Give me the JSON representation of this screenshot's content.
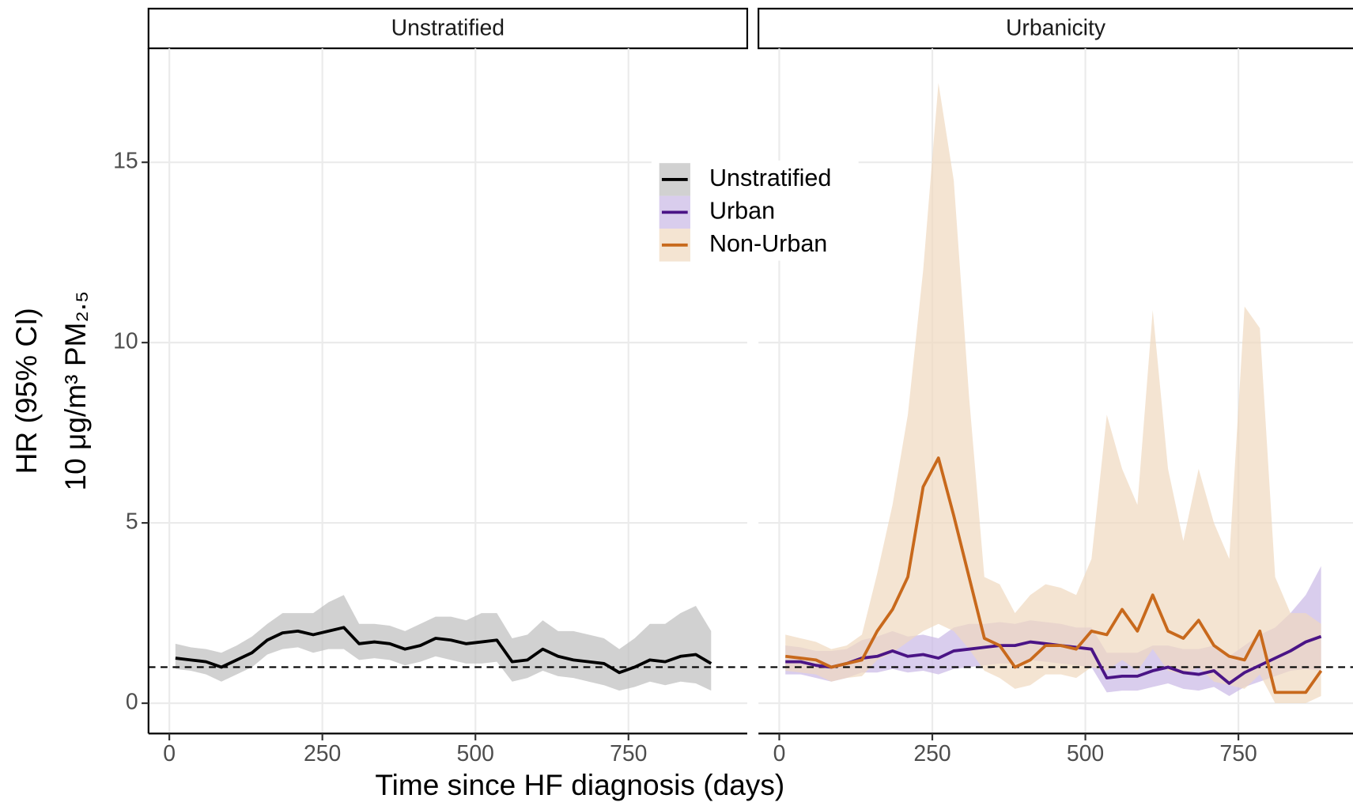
{
  "chart_data": [
    {
      "type": "line",
      "title": "Unstratified",
      "xlabel": "Time since HF diagnosis (days)",
      "ylabel": "HR (95% CI)",
      "ylabel2": "10 μg/m³ PM₂.₅",
      "xlim": [
        -34,
        944
      ],
      "ylim": [
        -0.84,
        18.16
      ],
      "xticks": [
        0,
        250,
        500,
        750
      ],
      "yticks": [
        0,
        5,
        10,
        15
      ],
      "grid": true,
      "hline": 1,
      "show_yticks": true,
      "x": [
        10,
        35,
        60,
        85,
        110,
        135,
        160,
        185,
        210,
        235,
        260,
        285,
        310,
        335,
        360,
        385,
        410,
        435,
        460,
        485,
        510,
        535,
        560,
        585,
        610,
        635,
        660,
        685,
        710,
        735,
        760,
        785,
        810,
        835,
        860,
        885
      ],
      "series": [
        {
          "name": "Unstratified",
          "color": "#000000",
          "band_color": "#bebebe",
          "values": [
            1.25,
            1.2,
            1.15,
            1.0,
            1.2,
            1.4,
            1.75,
            1.95,
            2.0,
            1.9,
            2.0,
            2.1,
            1.65,
            1.7,
            1.65,
            1.5,
            1.6,
            1.8,
            1.75,
            1.65,
            1.7,
            1.75,
            1.15,
            1.2,
            1.5,
            1.3,
            1.2,
            1.15,
            1.1,
            0.85,
            1.0,
            1.2,
            1.15,
            1.3,
            1.35,
            1.1
          ],
          "lower": [
            0.95,
            0.9,
            0.8,
            0.6,
            0.8,
            1.0,
            1.35,
            1.5,
            1.55,
            1.4,
            1.5,
            1.5,
            1.2,
            1.25,
            1.2,
            1.05,
            1.15,
            1.3,
            1.2,
            1.1,
            1.1,
            1.15,
            0.6,
            0.7,
            0.9,
            0.75,
            0.7,
            0.6,
            0.5,
            0.35,
            0.45,
            0.6,
            0.5,
            0.6,
            0.55,
            0.35
          ],
          "upper": [
            1.65,
            1.55,
            1.5,
            1.4,
            1.6,
            1.85,
            2.2,
            2.5,
            2.5,
            2.5,
            2.8,
            3.0,
            2.2,
            2.2,
            2.15,
            2.0,
            2.2,
            2.4,
            2.4,
            2.3,
            2.5,
            2.5,
            1.8,
            1.9,
            2.3,
            2.0,
            2.0,
            1.9,
            1.8,
            1.5,
            1.8,
            2.2,
            2.2,
            2.5,
            2.7,
            2.0
          ]
        }
      ]
    },
    {
      "type": "line",
      "title": "Urbanicity",
      "xlim": [
        -34,
        944
      ],
      "ylim": [
        -0.84,
        18.16
      ],
      "xticks": [
        0,
        250,
        500,
        750
      ],
      "yticks": [
        0,
        5,
        10,
        15
      ],
      "grid": true,
      "hline": 1,
      "show_yticks": false,
      "x": [
        10,
        35,
        60,
        85,
        110,
        135,
        160,
        185,
        210,
        235,
        260,
        285,
        310,
        335,
        360,
        385,
        410,
        435,
        460,
        485,
        510,
        535,
        560,
        585,
        610,
        635,
        660,
        685,
        710,
        735,
        760,
        785,
        810,
        835,
        860,
        885
      ],
      "series": [
        {
          "name": "Urban",
          "color": "#4a1486",
          "band_color": "#c9b8e6",
          "values": [
            1.15,
            1.15,
            1.05,
            1.0,
            1.1,
            1.25,
            1.3,
            1.45,
            1.3,
            1.35,
            1.25,
            1.45,
            1.5,
            1.55,
            1.6,
            1.6,
            1.7,
            1.65,
            1.6,
            1.55,
            1.5,
            0.7,
            0.75,
            0.75,
            0.9,
            1.0,
            0.85,
            0.8,
            0.9,
            0.55,
            0.85,
            1.05,
            1.25,
            1.45,
            1.7,
            1.85
          ],
          "lower": [
            0.8,
            0.8,
            0.7,
            0.6,
            0.7,
            0.85,
            0.85,
            0.95,
            0.85,
            0.9,
            0.8,
            0.95,
            1.0,
            1.05,
            1.1,
            1.1,
            1.2,
            1.15,
            1.1,
            1.05,
            1.0,
            0.3,
            0.35,
            0.35,
            0.45,
            0.55,
            0.4,
            0.35,
            0.45,
            0.2,
            0.45,
            0.6,
            0.75,
            0.9,
            0.95,
            0.9
          ],
          "upper": [
            1.6,
            1.55,
            1.45,
            1.45,
            1.5,
            1.75,
            1.85,
            2.0,
            1.85,
            1.9,
            1.8,
            2.1,
            2.2,
            2.2,
            2.25,
            2.2,
            2.3,
            2.25,
            2.2,
            2.1,
            2.1,
            1.4,
            1.4,
            1.4,
            1.6,
            1.6,
            1.5,
            1.5,
            1.6,
            1.3,
            1.6,
            1.9,
            2.1,
            2.5,
            3.0,
            3.8
          ]
        },
        {
          "name": "Non-Urban",
          "color": "#c8691c",
          "band_color": "#f0d9bf",
          "values": [
            1.3,
            1.25,
            1.2,
            1.0,
            1.1,
            1.2,
            2.0,
            2.6,
            3.5,
            6.0,
            6.8,
            5.2,
            3.5,
            1.8,
            1.6,
            1.0,
            1.2,
            1.6,
            1.6,
            1.5,
            2.0,
            1.9,
            2.6,
            2.0,
            3.0,
            2.0,
            1.8,
            2.3,
            1.6,
            1.3,
            1.2,
            2.0,
            0.3,
            0.3,
            0.3,
            0.9
          ],
          "lower": [
            0.9,
            0.85,
            0.8,
            0.6,
            0.7,
            0.75,
            1.2,
            1.4,
            1.7,
            2.0,
            2.2,
            2.0,
            1.5,
            0.9,
            0.7,
            0.4,
            0.5,
            0.8,
            0.8,
            0.7,
            1.0,
            0.9,
            1.2,
            0.9,
            1.5,
            0.9,
            0.8,
            1.0,
            0.6,
            0.5,
            0.4,
            0.8,
            0.0,
            0.0,
            0.0,
            0.2
          ],
          "upper": [
            1.9,
            1.8,
            1.7,
            1.5,
            1.6,
            1.9,
            3.6,
            5.5,
            8.0,
            12.0,
            17.2,
            14.5,
            8.5,
            3.5,
            3.3,
            2.5,
            3.0,
            3.3,
            3.2,
            3.0,
            4.0,
            8.0,
            6.5,
            5.5,
            10.9,
            6.5,
            4.5,
            6.5,
            5.0,
            4.0,
            11.0,
            10.4,
            3.5,
            2.5,
            2.5,
            2.2
          ]
        }
      ]
    }
  ]
}
